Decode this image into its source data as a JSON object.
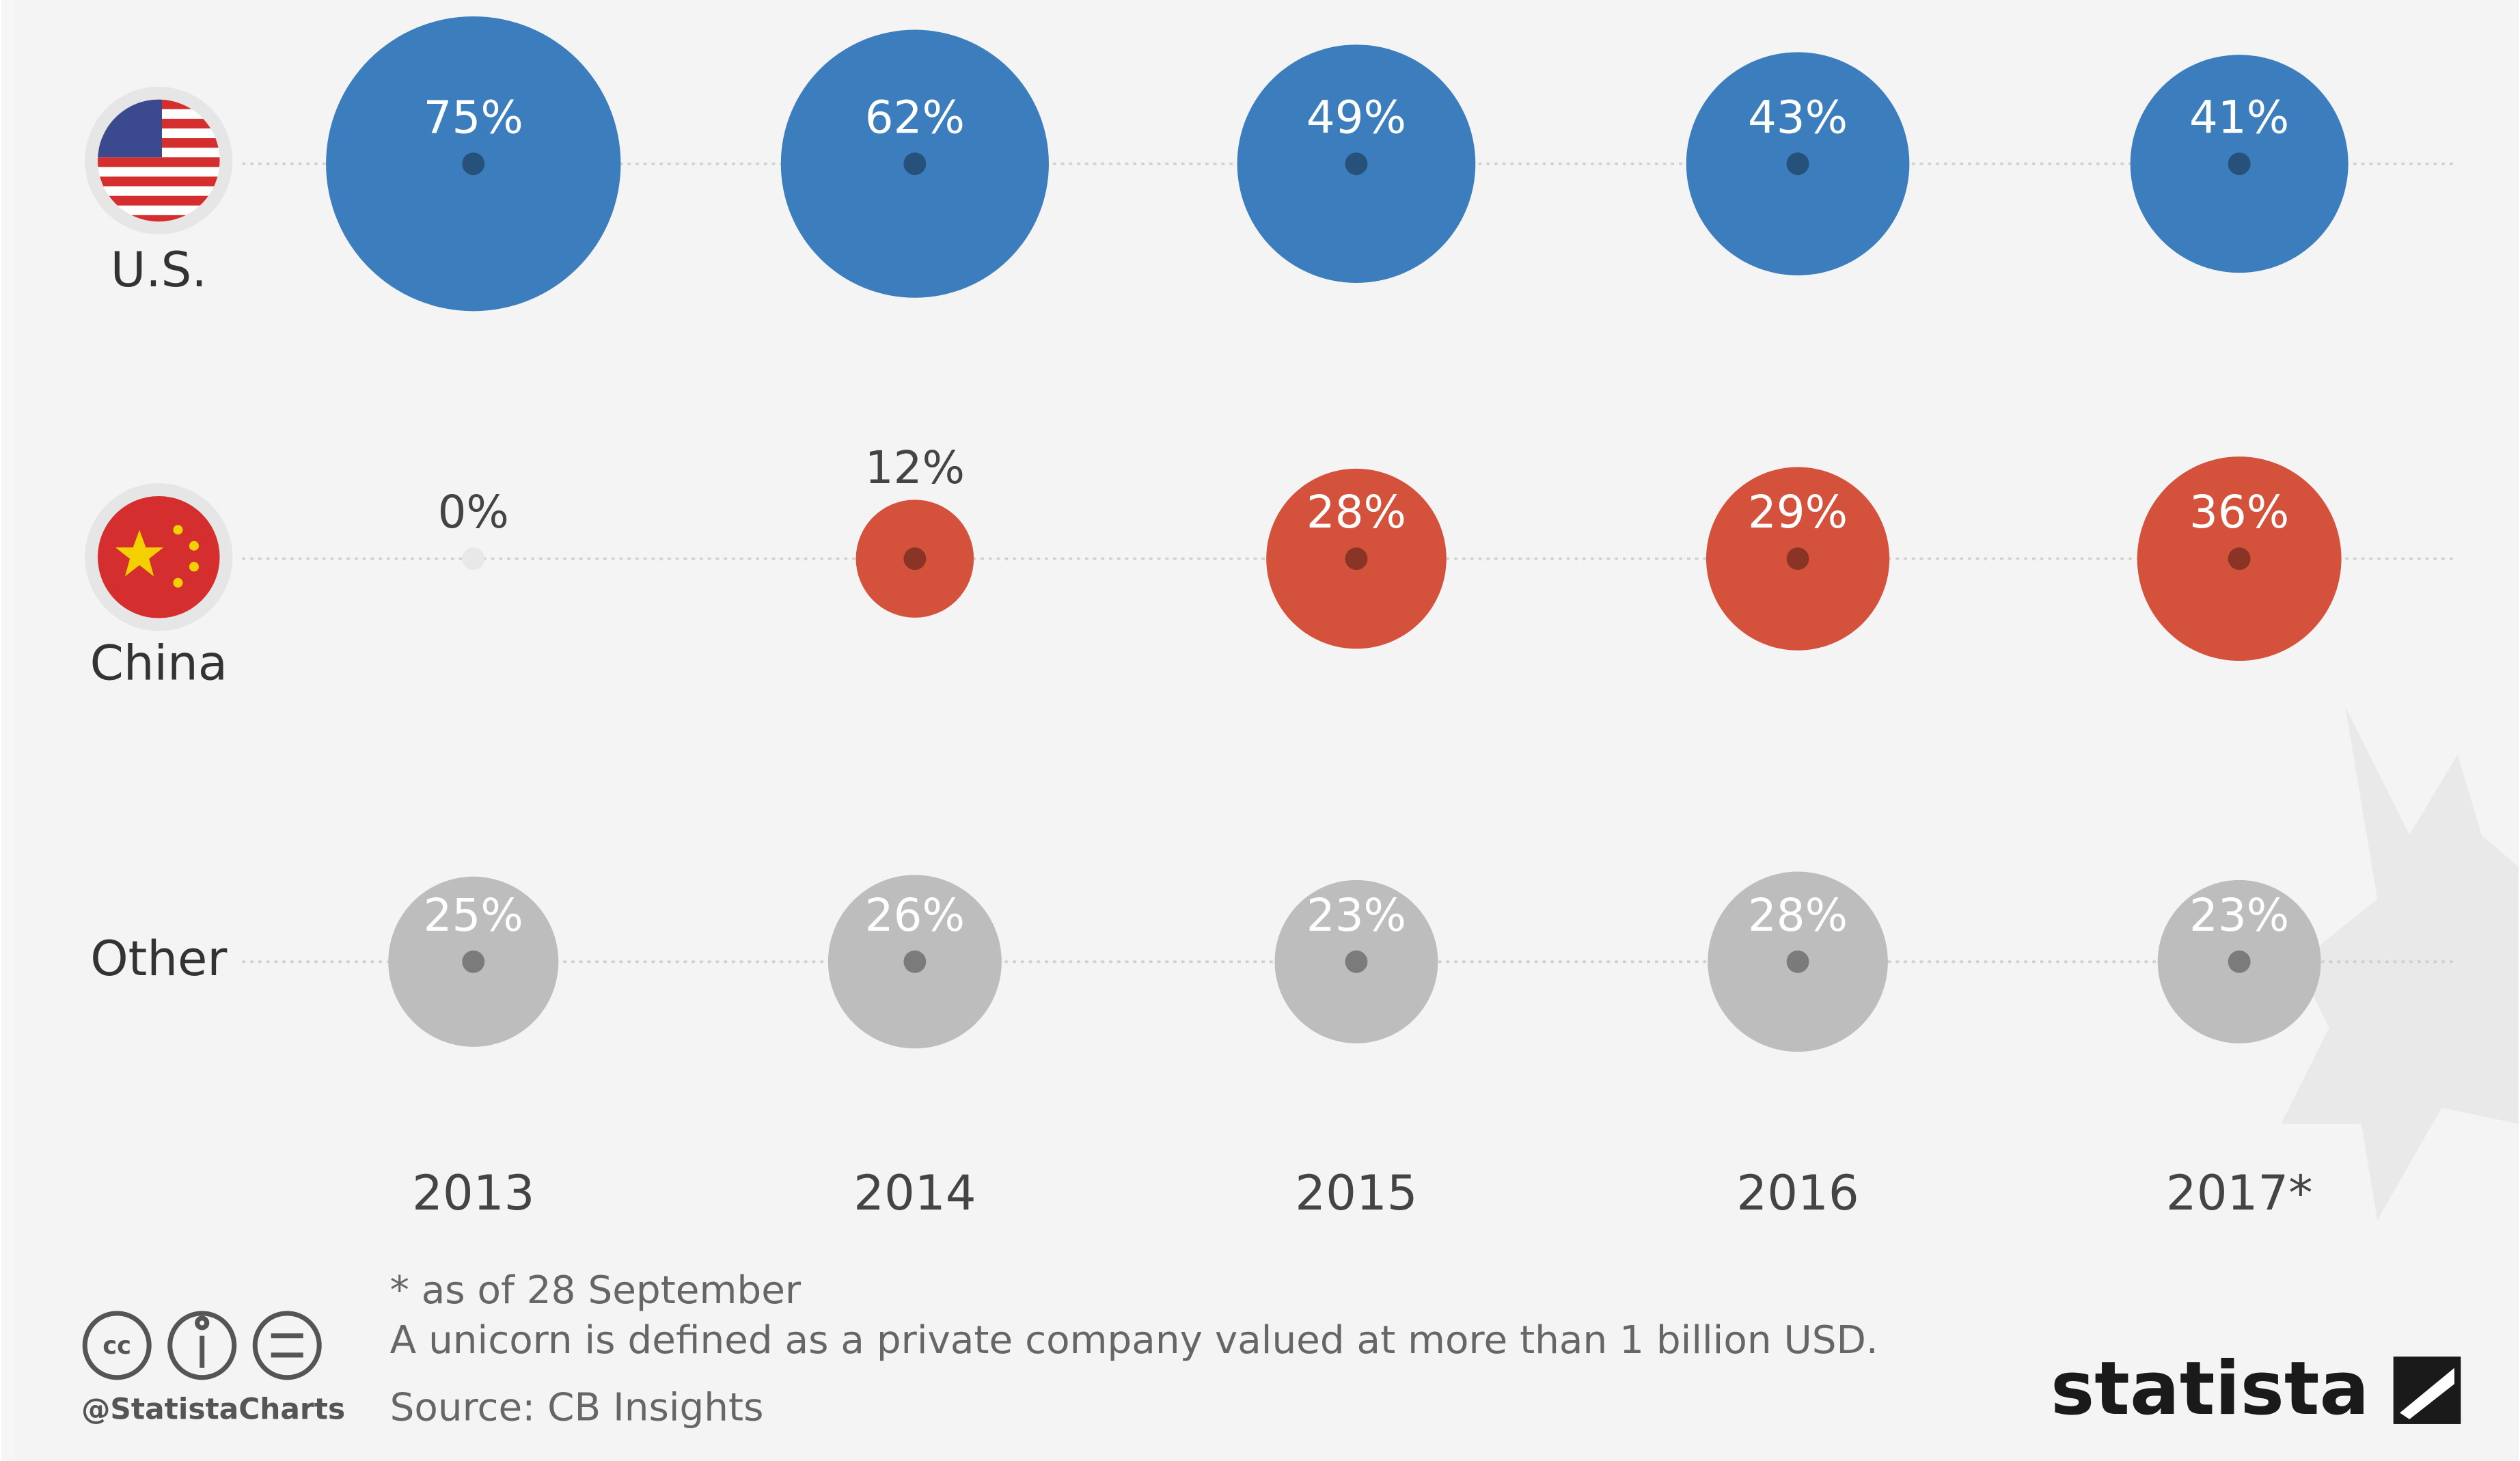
{
  "chart_data": {
    "type": "bubble",
    "categories": [
      "2013",
      "2014",
      "2015",
      "2016",
      "2017*"
    ],
    "series": [
      {
        "name": "U.S.",
        "color": "#3b7dbd",
        "values": [
          75,
          62,
          49,
          43,
          41
        ],
        "value_labels": [
          "75%",
          "62%",
          "49%",
          "43%",
          "41%"
        ]
      },
      {
        "name": "China",
        "color": "#d4513b",
        "values": [
          0,
          12,
          28,
          29,
          36
        ],
        "value_labels": [
          "0%",
          "12%",
          "28%",
          "29%",
          "36%"
        ]
      },
      {
        "name": "Other",
        "color": "#bdbdbd",
        "values": [
          25,
          26,
          23,
          28,
          23
        ],
        "value_labels": [
          "25%",
          "26%",
          "23%",
          "28%",
          "23%"
        ]
      }
    ],
    "notes": [
      "* as of 28 September",
      "A unicorn is defined as a private company valued at more than 1 billion USD.",
      "Source: CB Insights"
    ],
    "handle": "@StatistaCharts",
    "brand": "statista"
  }
}
